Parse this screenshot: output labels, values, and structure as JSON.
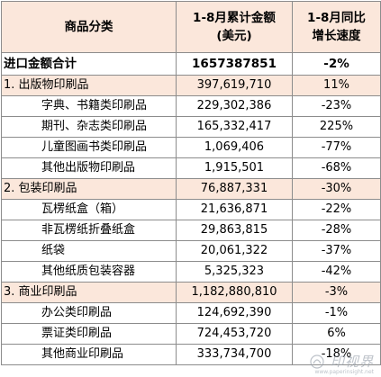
{
  "header": {
    "col1": "商品分类",
    "col2_line1": "1-8月累计金额",
    "col2_line2": "(美元)",
    "col3_line1": "1-8月同比",
    "col3_line2": "增长速度"
  },
  "total": {
    "name": "进口金额合计",
    "amount": "1657387851",
    "growth": "-2%"
  },
  "rows": [
    {
      "type": "cat",
      "name": "1. 出版物印刷品",
      "amount": "397,619,710",
      "growth": "11%"
    },
    {
      "type": "sub",
      "name": "字典、书籍类印刷品",
      "amount": "229,302,386",
      "growth": "-23%"
    },
    {
      "type": "sub",
      "name": "期刊、杂志类印刷品",
      "amount": "165,332,417",
      "growth": "225%"
    },
    {
      "type": "sub",
      "name": "儿童图画书类印刷品",
      "amount": "1,069,406",
      "growth": "-77%"
    },
    {
      "type": "sub",
      "name": "其他出版物印刷品",
      "amount": "1,915,501",
      "growth": "-68%"
    },
    {
      "type": "cat",
      "name": "2. 包装印刷品",
      "amount": "76,887,331",
      "growth": "-30%"
    },
    {
      "type": "sub",
      "name": "瓦楞纸盒（箱）",
      "amount": "21,636,871",
      "growth": "-22%"
    },
    {
      "type": "sub",
      "name": "非瓦楞纸折叠纸盒",
      "amount": "29,863,815",
      "growth": "-28%"
    },
    {
      "type": "sub",
      "name": "纸袋",
      "amount": "20,061,322",
      "growth": "-37%"
    },
    {
      "type": "sub",
      "name": "其他纸质包装容器",
      "amount": "5,325,323",
      "growth": "-42%"
    },
    {
      "type": "cat",
      "name": "3. 商业印刷品",
      "amount": "1,182,880,810",
      "growth": "-3%"
    },
    {
      "type": "sub",
      "name": "办公类印刷品",
      "amount": "124,692,390",
      "growth": "-1%"
    },
    {
      "type": "sub",
      "name": "票证类印刷品",
      "amount": "724,453,720",
      "growth": "6%"
    },
    {
      "type": "sub",
      "name": "其他商业印刷品",
      "amount": "333,734,700",
      "growth": "-18%"
    }
  ],
  "watermark": {
    "text": "印视界",
    "url": "www.paperinsight.net"
  },
  "colors": {
    "header_bg": "#fbe7db",
    "category_bg": "#fbe7db",
    "border": "#8c8c8c"
  }
}
